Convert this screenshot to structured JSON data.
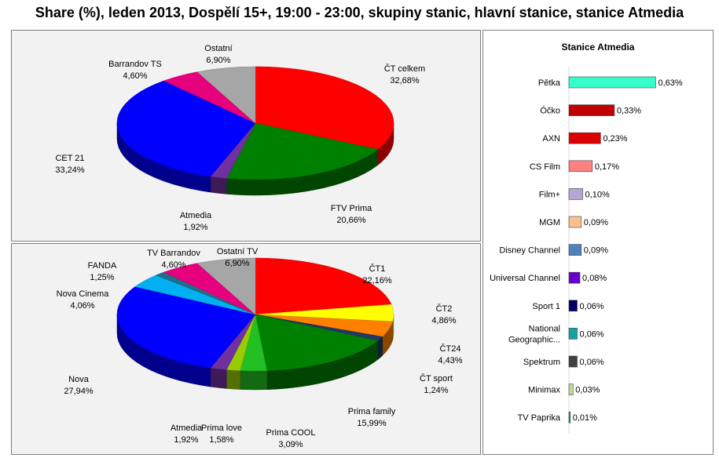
{
  "title": "Share (%), leden 2013, Dospělí 15+, 19:00 - 23:00, skupiny stanic, hlavní stanice, stanice Atmedia",
  "chart_data": [
    {
      "type": "pie",
      "title": "",
      "slices": [
        {
          "name": "ČT celkem",
          "value": 32.68,
          "label": "32,68%",
          "color": "#ff0000"
        },
        {
          "name": "FTV Prima",
          "value": 20.66,
          "label": "20,66%",
          "color": "#008000"
        },
        {
          "name": "Atmedia",
          "value": 1.92,
          "label": "1,92%",
          "color": "#7030a0"
        },
        {
          "name": "CET 21",
          "value": 33.24,
          "label": "33,24%",
          "color": "#0000ff"
        },
        {
          "name": "Barrandov TS",
          "value": 4.6,
          "label": "4,60%",
          "color": "#e6007e"
        },
        {
          "name": "Ostatní",
          "value": 6.9,
          "label": "6,90%",
          "color": "#a6a6a6"
        }
      ]
    },
    {
      "type": "pie",
      "title": "",
      "slices": [
        {
          "name": "ČT1",
          "value": 22.16,
          "label": "22,16%",
          "color": "#ff0000"
        },
        {
          "name": "ČT2",
          "value": 4.86,
          "label": "4,86%",
          "color": "#ffff00"
        },
        {
          "name": "ČT24",
          "value": 4.43,
          "label": "4,43%",
          "color": "#ff8000"
        },
        {
          "name": "ČT sport",
          "value": 1.24,
          "label": "1,24%",
          "color": "#1f3864"
        },
        {
          "name": "Prima family",
          "value": 15.99,
          "label": "15,99%",
          "color": "#008000"
        },
        {
          "name": "Prima COOL",
          "value": 3.09,
          "label": "3,09%",
          "color": "#22c022"
        },
        {
          "name": "Prima love",
          "value": 1.58,
          "label": "1,58%",
          "color": "#99cc00"
        },
        {
          "name": "Atmedia",
          "value": 1.92,
          "label": "1,92%",
          "color": "#7030a0"
        },
        {
          "name": "Nova",
          "value": 27.94,
          "label": "27,94%",
          "color": "#0000ff"
        },
        {
          "name": "Nova Cinema",
          "value": 4.06,
          "label": "4,06%",
          "color": "#00b0f0"
        },
        {
          "name": "FANDA",
          "value": 1.25,
          "label": "1,25%",
          "color": "#1f6f8b"
        },
        {
          "name": "TV Barrandov",
          "value": 4.6,
          "label": "4,60%",
          "color": "#e6007e"
        },
        {
          "name": "Ostatní TV",
          "value": 6.9,
          "label": "6,90%",
          "color": "#a6a6a6"
        }
      ]
    },
    {
      "type": "bar",
      "orientation": "horizontal",
      "title": "Stanice Atmedia",
      "xlim": [
        0,
        0.65
      ],
      "bars": [
        {
          "category": "Pětka",
          "value": 0.63,
          "label": "0,63%",
          "color": "#33ffcc"
        },
        {
          "category": "Óčko",
          "value": 0.33,
          "label": "0,33%",
          "color": "#c00000"
        },
        {
          "category": "AXN",
          "value": 0.23,
          "label": "0,23%",
          "color": "#dd0000"
        },
        {
          "category": "CS Film",
          "value": 0.17,
          "label": "0,17%",
          "color": "#ff8080"
        },
        {
          "category": "Film+",
          "value": 0.1,
          "label": "0,10%",
          "color": "#b4a7d6"
        },
        {
          "category": "MGM",
          "value": 0.09,
          "label": "0,09%",
          "color": "#fac090"
        },
        {
          "category": "Disney Channel",
          "value": 0.09,
          "label": "0,09%",
          "color": "#4f81bd"
        },
        {
          "category": "Universal Channel",
          "value": 0.08,
          "label": "0,08%",
          "color": "#6600cc"
        },
        {
          "category": "Sport 1",
          "value": 0.06,
          "label": "0,06%",
          "color": "#000066"
        },
        {
          "category": "National Geographic...",
          "category_lines": [
            "National",
            "Geographic..."
          ],
          "value": 0.06,
          "label": "0,06%",
          "color": "#17a2a2"
        },
        {
          "category": "Spektrum",
          "value": 0.06,
          "label": "0,06%",
          "color": "#404040"
        },
        {
          "category": "Minimax",
          "value": 0.03,
          "label": "0,03%",
          "color": "#c4d79b"
        },
        {
          "category": "TV Paprika",
          "value": 0.01,
          "label": "0,01%",
          "color": "#00b050"
        }
      ]
    }
  ]
}
